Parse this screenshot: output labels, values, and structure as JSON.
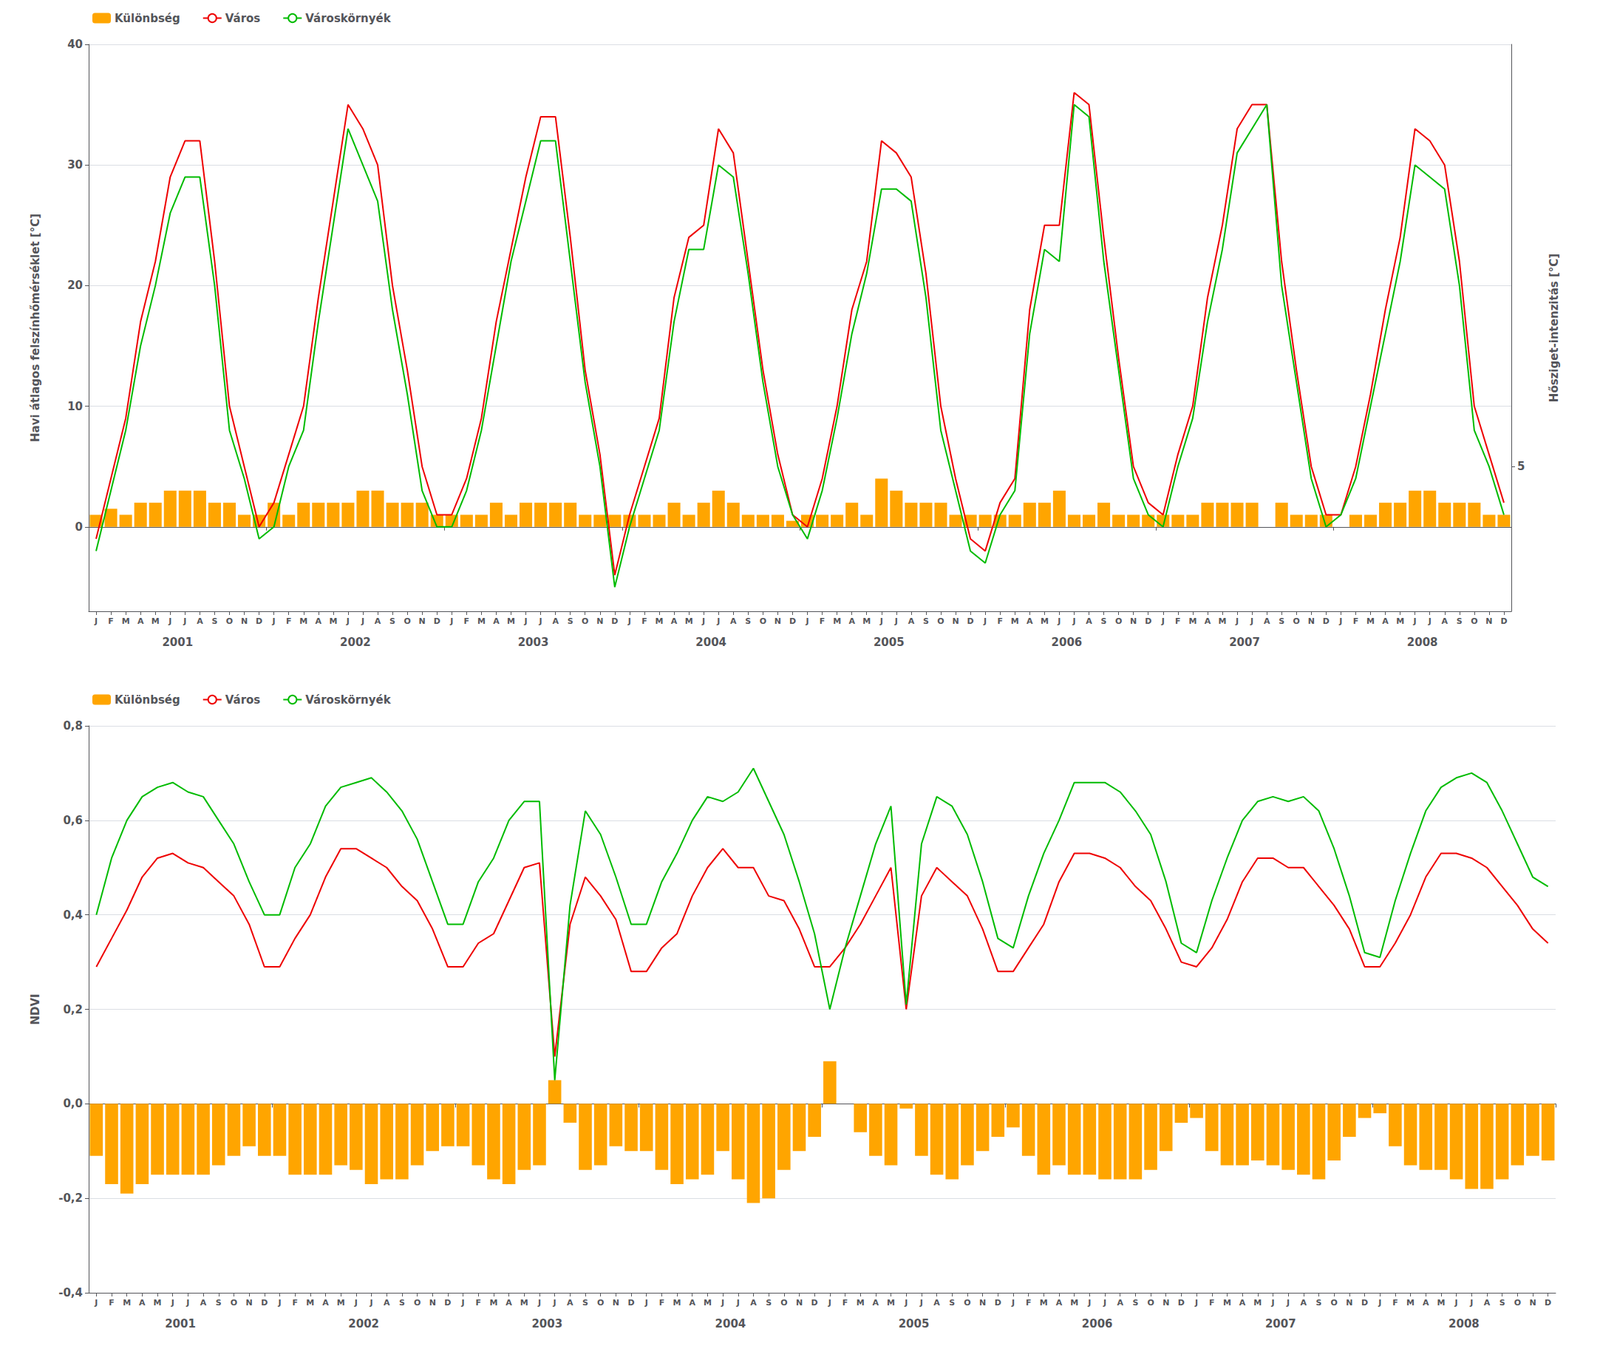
{
  "chart_data": [
    {
      "type": "bar",
      "categories": [
        "J",
        "F",
        "M",
        "A",
        "M",
        "J",
        "J",
        "A",
        "S",
        "O",
        "N",
        "D",
        "J",
        "F",
        "M",
        "A",
        "M",
        "J",
        "J",
        "A",
        "S",
        "O",
        "N",
        "D",
        "J",
        "F",
        "M",
        "A",
        "M",
        "J",
        "J",
        "A",
        "S",
        "O",
        "N",
        "D",
        "J",
        "F",
        "M",
        "A",
        "M",
        "J",
        "J",
        "A",
        "S",
        "O",
        "N",
        "D",
        "J",
        "F",
        "M",
        "A",
        "M",
        "J",
        "J",
        "A",
        "S",
        "O",
        "N",
        "D",
        "J",
        "F",
        "M",
        "A",
        "M",
        "J",
        "J",
        "A",
        "S",
        "O",
        "N",
        "D",
        "J",
        "F",
        "M",
        "A",
        "M",
        "J",
        "J",
        "A",
        "S",
        "O",
        "N",
        "D",
        "J",
        "F",
        "M",
        "A",
        "M",
        "J",
        "J",
        "A",
        "S",
        "O",
        "N",
        "D"
      ],
      "annotations": [
        "2001",
        "2002",
        "2003",
        "2004",
        "2005",
        "2006",
        "2007",
        "2008"
      ],
      "series": [
        {
          "name": "Különbség",
          "type": "bar",
          "color": "#FFA500",
          "values": [
            1.0,
            1.5,
            1.0,
            2.0,
            2.0,
            3.0,
            3.0,
            3.0,
            2.0,
            2.0,
            1.0,
            1.0,
            2.0,
            1.0,
            2.0,
            2.0,
            2.0,
            2.0,
            3.0,
            3.0,
            2.0,
            2.0,
            2.0,
            1.0,
            1.0,
            1.0,
            1.0,
            2.0,
            1.0,
            2.0,
            2.0,
            2.0,
            2.0,
            1.0,
            1.0,
            1.0,
            1.0,
            1.0,
            1.0,
            2.0,
            1.0,
            2.0,
            3.0,
            2.0,
            1.0,
            1.0,
            1.0,
            0.5,
            1.0,
            1.0,
            1.0,
            2.0,
            1.0,
            4.0,
            3.0,
            2.0,
            2.0,
            2.0,
            1.0,
            1.0,
            1.0,
            1.0,
            1.0,
            2.0,
            2.0,
            3.0,
            1.0,
            1.0,
            2.0,
            1.0,
            1.0,
            1.0,
            1.0,
            1.0,
            1.0,
            2.0,
            2.0,
            2.0,
            2.0,
            0.0,
            2.0,
            1.0,
            1.0,
            1.0,
            0.0,
            1.0,
            1.0,
            2.0,
            2.0,
            3.0,
            3.0,
            2.0,
            2.0,
            2.0,
            1.0,
            1.0
          ]
        },
        {
          "name": "Város",
          "type": "line",
          "color": "#EE0000",
          "values": [
            -1,
            4,
            9,
            17,
            22,
            29,
            32,
            32,
            22,
            10,
            5,
            0,
            2,
            6,
            10,
            19,
            27,
            35,
            33,
            30,
            20,
            13,
            5,
            1,
            1,
            4,
            9,
            17,
            23,
            29,
            34,
            34,
            24,
            13,
            6,
            -4,
            1,
            5,
            9,
            19,
            24,
            25,
            33,
            31,
            22,
            13,
            6,
            1,
            0,
            4,
            10,
            18,
            22,
            32,
            31,
            29,
            21,
            10,
            4,
            -1,
            -2,
            2,
            4,
            18,
            25,
            25,
            36,
            35,
            24,
            14,
            5,
            2,
            1,
            6,
            10,
            19,
            25,
            33,
            35,
            35,
            22,
            13,
            5,
            1,
            1,
            5,
            11,
            18,
            24,
            33,
            32,
            30,
            22,
            10,
            6,
            2
          ]
        },
        {
          "name": "Városkörnyék",
          "type": "line",
          "color": "#00BB00",
          "values": [
            -2,
            3,
            8,
            15,
            20,
            26,
            29,
            29,
            20,
            8,
            4,
            -1,
            0,
            5,
            8,
            17,
            25,
            33,
            30,
            27,
            18,
            11,
            3,
            0,
            0,
            3,
            8,
            15,
            22,
            27,
            32,
            32,
            22,
            12,
            5,
            -5,
            0,
            4,
            8,
            17,
            23,
            23,
            30,
            29,
            21,
            12,
            5,
            1,
            -1,
            3,
            9,
            16,
            21,
            28,
            28,
            27,
            19,
            8,
            3,
            -2,
            -3,
            1,
            3,
            16,
            23,
            22,
            35,
            34,
            22,
            13,
            4,
            1,
            0,
            5,
            9,
            17,
            23,
            31,
            33,
            35,
            20,
            12,
            4,
            0,
            1,
            4,
            10,
            16,
            22,
            30,
            29,
            28,
            20,
            8,
            5,
            1
          ]
        }
      ],
      "ylabel": "Havi átlagos felszínhőmérséklet [°C]",
      "ylim": [
        -7,
        40
      ],
      "yticks": [
        0,
        10,
        20,
        30,
        40
      ],
      "y2label": "Hősziget-intenzitás [°C]",
      "y2lim": [
        -7,
        40
      ],
      "y2ticks": [
        5
      ],
      "grid": true,
      "legend": "upper left"
    },
    {
      "type": "bar",
      "categories": [
        "J",
        "F",
        "M",
        "A",
        "M",
        "J",
        "J",
        "A",
        "S",
        "O",
        "N",
        "D",
        "J",
        "F",
        "M",
        "A",
        "M",
        "J",
        "J",
        "A",
        "S",
        "O",
        "N",
        "D",
        "J",
        "F",
        "M",
        "A",
        "M",
        "J",
        "J",
        "A",
        "S",
        "O",
        "N",
        "D",
        "J",
        "F",
        "M",
        "A",
        "M",
        "J",
        "J",
        "A",
        "S",
        "O",
        "N",
        "D",
        "J",
        "F",
        "M",
        "A",
        "M",
        "J",
        "J",
        "A",
        "S",
        "O",
        "N",
        "D",
        "J",
        "F",
        "M",
        "A",
        "M",
        "J",
        "J",
        "A",
        "S",
        "O",
        "N",
        "D",
        "J",
        "F",
        "M",
        "A",
        "M",
        "J",
        "J",
        "A",
        "S",
        "O",
        "N",
        "D",
        "J",
        "F",
        "M",
        "A",
        "M",
        "J",
        "J",
        "A",
        "S",
        "O",
        "N",
        "D"
      ],
      "annotations": [
        "2001",
        "2002",
        "2003",
        "2004",
        "2005",
        "2006",
        "2007",
        "2008"
      ],
      "series": [
        {
          "name": "Különbség",
          "type": "bar",
          "color": "#FFA500",
          "values": [
            -0.11,
            -0.17,
            -0.19,
            -0.17,
            -0.15,
            -0.15,
            -0.15,
            -0.15,
            -0.13,
            -0.11,
            -0.09,
            -0.11,
            -0.11,
            -0.15,
            -0.15,
            -0.15,
            -0.13,
            -0.14,
            -0.17,
            -0.16,
            -0.16,
            -0.13,
            -0.1,
            -0.09,
            -0.09,
            -0.13,
            -0.16,
            -0.17,
            -0.14,
            -0.13,
            0.05,
            -0.04,
            -0.14,
            -0.13,
            -0.09,
            -0.1,
            -0.1,
            -0.14,
            -0.17,
            -0.16,
            -0.15,
            -0.1,
            -0.16,
            -0.21,
            -0.2,
            -0.14,
            -0.1,
            -0.07,
            0.09,
            0.0,
            -0.06,
            -0.11,
            -0.13,
            -0.01,
            -0.11,
            -0.15,
            -0.16,
            -0.13,
            -0.1,
            -0.07,
            -0.05,
            -0.11,
            -0.15,
            -0.13,
            -0.15,
            -0.15,
            -0.16,
            -0.16,
            -0.16,
            -0.14,
            -0.1,
            -0.04,
            -0.03,
            -0.1,
            -0.13,
            -0.13,
            -0.12,
            -0.13,
            -0.14,
            -0.15,
            -0.16,
            -0.12,
            -0.07,
            -0.03,
            -0.02,
            -0.09,
            -0.13,
            -0.14,
            -0.14,
            -0.16,
            -0.18,
            -0.18,
            -0.16,
            -0.13,
            -0.11,
            -0.12
          ]
        },
        {
          "name": "Város",
          "type": "line",
          "color": "#EE0000",
          "values": [
            0.29,
            0.35,
            0.41,
            0.48,
            0.52,
            0.53,
            0.51,
            0.5,
            0.47,
            0.44,
            0.38,
            0.29,
            0.29,
            0.35,
            0.4,
            0.48,
            0.54,
            0.54,
            0.52,
            0.5,
            0.46,
            0.43,
            0.37,
            0.29,
            0.29,
            0.34,
            0.36,
            0.43,
            0.5,
            0.51,
            0.1,
            0.38,
            0.48,
            0.44,
            0.39,
            0.28,
            0.28,
            0.33,
            0.36,
            0.44,
            0.5,
            0.54,
            0.5,
            0.5,
            0.44,
            0.43,
            0.37,
            0.29,
            0.29,
            0.33,
            0.38,
            0.44,
            0.5,
            0.2,
            0.44,
            0.5,
            0.47,
            0.44,
            0.37,
            0.28,
            0.28,
            0.33,
            0.38,
            0.47,
            0.53,
            0.53,
            0.52,
            0.5,
            0.46,
            0.43,
            0.37,
            0.3,
            0.29,
            0.33,
            0.39,
            0.47,
            0.52,
            0.52,
            0.5,
            0.5,
            0.46,
            0.42,
            0.37,
            0.29,
            0.29,
            0.34,
            0.4,
            0.48,
            0.53,
            0.53,
            0.52,
            0.5,
            0.46,
            0.42,
            0.37,
            0.34
          ]
        },
        {
          "name": "Városkörnyék",
          "type": "line",
          "color": "#00BB00",
          "values": [
            0.4,
            0.52,
            0.6,
            0.65,
            0.67,
            0.68,
            0.66,
            0.65,
            0.6,
            0.55,
            0.47,
            0.4,
            0.4,
            0.5,
            0.55,
            0.63,
            0.67,
            0.68,
            0.69,
            0.66,
            0.62,
            0.56,
            0.47,
            0.38,
            0.38,
            0.47,
            0.52,
            0.6,
            0.64,
            0.64,
            0.05,
            0.42,
            0.62,
            0.57,
            0.48,
            0.38,
            0.38,
            0.47,
            0.53,
            0.6,
            0.65,
            0.64,
            0.66,
            0.71,
            0.64,
            0.57,
            0.47,
            0.36,
            0.2,
            0.33,
            0.44,
            0.55,
            0.63,
            0.21,
            0.55,
            0.65,
            0.63,
            0.57,
            0.47,
            0.35,
            0.33,
            0.44,
            0.53,
            0.6,
            0.68,
            0.68,
            0.68,
            0.66,
            0.62,
            0.57,
            0.47,
            0.34,
            0.32,
            0.43,
            0.52,
            0.6,
            0.64,
            0.65,
            0.64,
            0.65,
            0.62,
            0.54,
            0.44,
            0.32,
            0.31,
            0.43,
            0.53,
            0.62,
            0.67,
            0.69,
            0.7,
            0.68,
            0.62,
            0.55,
            0.48,
            0.46
          ]
        }
      ],
      "ylabel": "NDVI",
      "ylim": [
        -0.4,
        0.8
      ],
      "yticks": [
        {
          "value": -0.4,
          "label": "-0,4"
        },
        {
          "value": -0.2,
          "label": "-0,2"
        },
        {
          "value": 0,
          "label": "0,0"
        },
        {
          "value": 0.2,
          "label": "0,2"
        },
        {
          "value": 0.4,
          "label": "0,4"
        },
        {
          "value": 0.6,
          "label": "0,6"
        },
        {
          "value": 0.8,
          "label": "0,8"
        }
      ],
      "grid": true,
      "legend": "upper left"
    }
  ]
}
